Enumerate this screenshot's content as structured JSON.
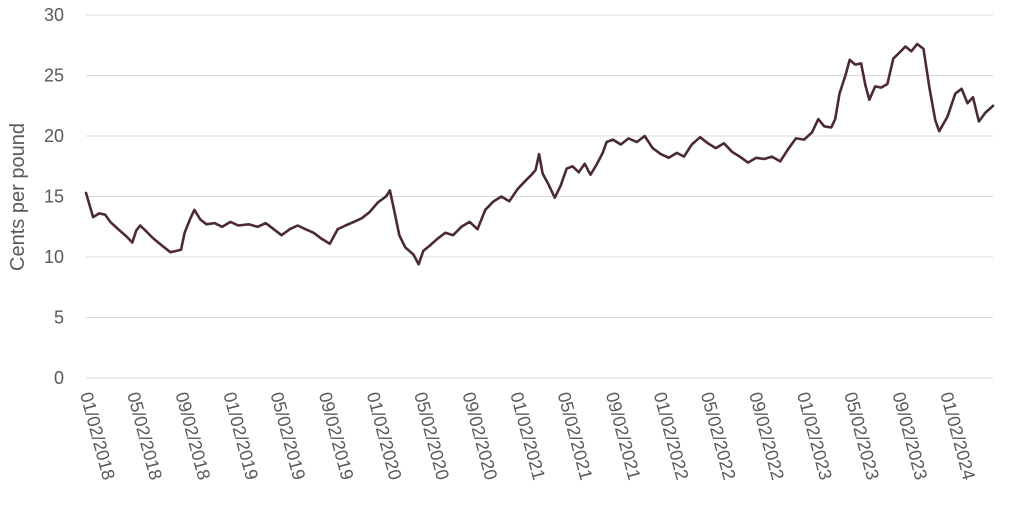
{
  "chart_data": {
    "type": "line",
    "title": "",
    "xlabel": "",
    "ylabel": "Cents per pound",
    "ylim": [
      0,
      30
    ],
    "yticks": [
      "0",
      "5",
      "10",
      "15",
      "20",
      "25",
      "30"
    ],
    "xlim": [
      "2018-01-02",
      "2024-04-30"
    ],
    "grid": true,
    "legend": "none",
    "xtick_labels": [
      {
        "date": "2018-01-02",
        "label": "01/02/2018"
      },
      {
        "date": "2018-05-02",
        "label": "05/02/2018"
      },
      {
        "date": "2018-09-02",
        "label": "09/02/2018"
      },
      {
        "date": "2019-01-02",
        "label": "01/02/2019"
      },
      {
        "date": "2019-05-02",
        "label": "05/02/2019"
      },
      {
        "date": "2019-09-02",
        "label": "09/02/2019"
      },
      {
        "date": "2020-01-02",
        "label": "01/02/2020"
      },
      {
        "date": "2020-05-02",
        "label": "05/02/2020"
      },
      {
        "date": "2020-09-02",
        "label": "09/02/2020"
      },
      {
        "date": "2021-01-02",
        "label": "01/02/2021"
      },
      {
        "date": "2021-05-02",
        "label": "05/02/2021"
      },
      {
        "date": "2021-09-02",
        "label": "09/02/2021"
      },
      {
        "date": "2022-01-02",
        "label": "01/02/2022"
      },
      {
        "date": "2022-05-02",
        "label": "05/02/2022"
      },
      {
        "date": "2022-09-02",
        "label": "09/02/2022"
      },
      {
        "date": "2023-01-02",
        "label": "01/02/2023"
      },
      {
        "date": "2023-05-02",
        "label": "05/02/2023"
      },
      {
        "date": "2023-09-02",
        "label": "09/02/2023"
      },
      {
        "date": "2024-01-02",
        "label": "01/02/2024"
      }
    ],
    "line_color": "#4b2a33",
    "series": [
      {
        "points": [
          [
            "2018-01-02",
            15.3
          ],
          [
            "2018-01-20",
            13.3
          ],
          [
            "2018-02-05",
            13.6
          ],
          [
            "2018-02-20",
            13.5
          ],
          [
            "2018-03-05",
            12.9
          ],
          [
            "2018-03-25",
            12.3
          ],
          [
            "2018-04-15",
            11.7
          ],
          [
            "2018-04-30",
            11.2
          ],
          [
            "2018-05-10",
            12.2
          ],
          [
            "2018-05-20",
            12.6
          ],
          [
            "2018-06-05",
            12.1
          ],
          [
            "2018-06-20",
            11.6
          ],
          [
            "2018-07-05",
            11.2
          ],
          [
            "2018-07-20",
            10.8
          ],
          [
            "2018-08-05",
            10.4
          ],
          [
            "2018-08-20",
            10.5
          ],
          [
            "2018-09-01",
            10.6
          ],
          [
            "2018-09-10",
            12.0
          ],
          [
            "2018-09-25",
            13.2
          ],
          [
            "2018-10-05",
            13.9
          ],
          [
            "2018-10-20",
            13.1
          ],
          [
            "2018-11-05",
            12.7
          ],
          [
            "2018-11-25",
            12.8
          ],
          [
            "2018-12-15",
            12.5
          ],
          [
            "2019-01-05",
            12.9
          ],
          [
            "2019-01-25",
            12.6
          ],
          [
            "2019-02-20",
            12.7
          ],
          [
            "2019-03-15",
            12.5
          ],
          [
            "2019-04-05",
            12.8
          ],
          [
            "2019-04-25",
            12.3
          ],
          [
            "2019-05-15",
            11.8
          ],
          [
            "2019-06-05",
            12.3
          ],
          [
            "2019-06-25",
            12.6
          ],
          [
            "2019-07-15",
            12.3
          ],
          [
            "2019-08-05",
            12.0
          ],
          [
            "2019-08-25",
            11.5
          ],
          [
            "2019-09-15",
            11.1
          ],
          [
            "2019-10-05",
            12.3
          ],
          [
            "2019-10-25",
            12.6
          ],
          [
            "2019-11-15",
            12.9
          ],
          [
            "2019-12-05",
            13.2
          ],
          [
            "2019-12-25",
            13.7
          ],
          [
            "2020-01-15",
            14.5
          ],
          [
            "2020-02-05",
            15.0
          ],
          [
            "2020-02-15",
            15.5
          ],
          [
            "2020-02-25",
            14.0
          ],
          [
            "2020-03-10",
            11.8
          ],
          [
            "2020-03-25",
            10.8
          ],
          [
            "2020-04-15",
            10.2
          ],
          [
            "2020-04-28",
            9.4
          ],
          [
            "2020-05-10",
            10.5
          ],
          [
            "2020-05-25",
            10.9
          ],
          [
            "2020-06-15",
            11.5
          ],
          [
            "2020-07-05",
            12.0
          ],
          [
            "2020-07-25",
            11.8
          ],
          [
            "2020-08-15",
            12.5
          ],
          [
            "2020-09-05",
            12.9
          ],
          [
            "2020-09-25",
            12.3
          ],
          [
            "2020-10-15",
            13.9
          ],
          [
            "2020-11-05",
            14.6
          ],
          [
            "2020-11-25",
            15.0
          ],
          [
            "2020-12-15",
            14.6
          ],
          [
            "2021-01-05",
            15.6
          ],
          [
            "2021-01-25",
            16.3
          ],
          [
            "2021-02-10",
            16.8
          ],
          [
            "2021-02-20",
            17.2
          ],
          [
            "2021-03-01",
            18.5
          ],
          [
            "2021-03-10",
            16.9
          ],
          [
            "2021-03-25",
            16.0
          ],
          [
            "2021-04-10",
            14.9
          ],
          [
            "2021-04-25",
            15.9
          ],
          [
            "2021-05-10",
            17.3
          ],
          [
            "2021-05-25",
            17.5
          ],
          [
            "2021-06-10",
            17.0
          ],
          [
            "2021-06-25",
            17.7
          ],
          [
            "2021-07-10",
            16.8
          ],
          [
            "2021-07-25",
            17.6
          ],
          [
            "2021-08-10",
            18.6
          ],
          [
            "2021-08-20",
            19.5
          ],
          [
            "2021-09-05",
            19.7
          ],
          [
            "2021-09-25",
            19.3
          ],
          [
            "2021-10-15",
            19.8
          ],
          [
            "2021-11-05",
            19.5
          ],
          [
            "2021-11-25",
            20.0
          ],
          [
            "2021-12-15",
            19.0
          ],
          [
            "2022-01-05",
            18.5
          ],
          [
            "2022-01-25",
            18.2
          ],
          [
            "2022-02-15",
            18.6
          ],
          [
            "2022-03-05",
            18.3
          ],
          [
            "2022-03-25",
            19.3
          ],
          [
            "2022-04-15",
            19.9
          ],
          [
            "2022-05-05",
            19.4
          ],
          [
            "2022-05-25",
            19.0
          ],
          [
            "2022-06-15",
            19.4
          ],
          [
            "2022-07-05",
            18.7
          ],
          [
            "2022-07-25",
            18.3
          ],
          [
            "2022-08-15",
            17.8
          ],
          [
            "2022-09-05",
            18.2
          ],
          [
            "2022-09-25",
            18.1
          ],
          [
            "2022-10-15",
            18.3
          ],
          [
            "2022-11-05",
            17.9
          ],
          [
            "2022-11-25",
            18.9
          ],
          [
            "2022-12-15",
            19.8
          ],
          [
            "2023-01-05",
            19.7
          ],
          [
            "2023-01-25",
            20.3
          ],
          [
            "2023-02-10",
            21.4
          ],
          [
            "2023-02-25",
            20.8
          ],
          [
            "2023-03-15",
            20.7
          ],
          [
            "2023-03-25",
            21.4
          ],
          [
            "2023-04-05",
            23.5
          ],
          [
            "2023-04-20",
            25.0
          ],
          [
            "2023-05-01",
            26.3
          ],
          [
            "2023-05-15",
            25.9
          ],
          [
            "2023-05-30",
            26.0
          ],
          [
            "2023-06-10",
            24.2
          ],
          [
            "2023-06-20",
            23.0
          ],
          [
            "2023-07-05",
            24.1
          ],
          [
            "2023-07-20",
            24.0
          ],
          [
            "2023-08-05",
            24.3
          ],
          [
            "2023-08-20",
            26.4
          ],
          [
            "2023-09-05",
            26.9
          ],
          [
            "2023-09-20",
            27.4
          ],
          [
            "2023-10-05",
            27.0
          ],
          [
            "2023-10-20",
            27.6
          ],
          [
            "2023-11-05",
            27.2
          ],
          [
            "2023-11-20",
            24.0
          ],
          [
            "2023-12-05",
            21.3
          ],
          [
            "2023-12-15",
            20.4
          ],
          [
            "2024-01-05",
            21.6
          ],
          [
            "2024-01-25",
            23.5
          ],
          [
            "2024-02-10",
            23.9
          ],
          [
            "2024-02-25",
            22.7
          ],
          [
            "2024-03-10",
            23.2
          ],
          [
            "2024-03-25",
            21.2
          ],
          [
            "2024-04-10",
            21.9
          ],
          [
            "2024-04-30",
            22.5
          ]
        ]
      }
    ]
  }
}
